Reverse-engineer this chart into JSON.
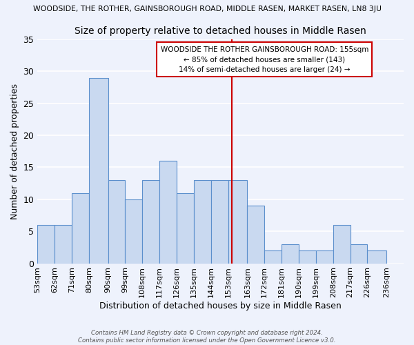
{
  "title_top": "WOODSIDE, THE ROTHER, GAINSBOROUGH ROAD, MIDDLE RASEN, MARKET RASEN, LN8 3JU",
  "title_main": "Size of property relative to detached houses in Middle Rasen",
  "xlabel": "Distribution of detached houses by size in Middle Rasen",
  "ylabel": "Number of detached properties",
  "bins": [
    53,
    62,
    71,
    80,
    90,
    99,
    108,
    117,
    126,
    135,
    144,
    153,
    163,
    172,
    181,
    190,
    199,
    208,
    217,
    226,
    236
  ],
  "values": [
    6,
    6,
    11,
    29,
    13,
    10,
    13,
    16,
    11,
    13,
    13,
    13,
    9,
    2,
    3,
    2,
    2,
    6,
    3,
    2,
    0
  ],
  "bar_color": "#c9d9f0",
  "bar_edge_color": "#5b8fcc",
  "property_size": 155,
  "annotation_title": "WOODSIDE THE ROTHER GAINSBOROUGH ROAD: 155sqm",
  "annotation_line1": "← 85% of detached houses are smaller (143)",
  "annotation_line2": "14% of semi-detached houses are larger (24) →",
  "vline_color": "#cc0000",
  "annotation_box_color": "#cc0000",
  "ylim": [
    0,
    35
  ],
  "yticks": [
    0,
    5,
    10,
    15,
    20,
    25,
    30,
    35
  ],
  "footer_line1": "Contains HM Land Registry data © Crown copyright and database right 2024.",
  "footer_line2": "Contains public sector information licensed under the Open Government Licence v3.0.",
  "background_color": "#eef2fc",
  "grid_color": "#ffffff"
}
